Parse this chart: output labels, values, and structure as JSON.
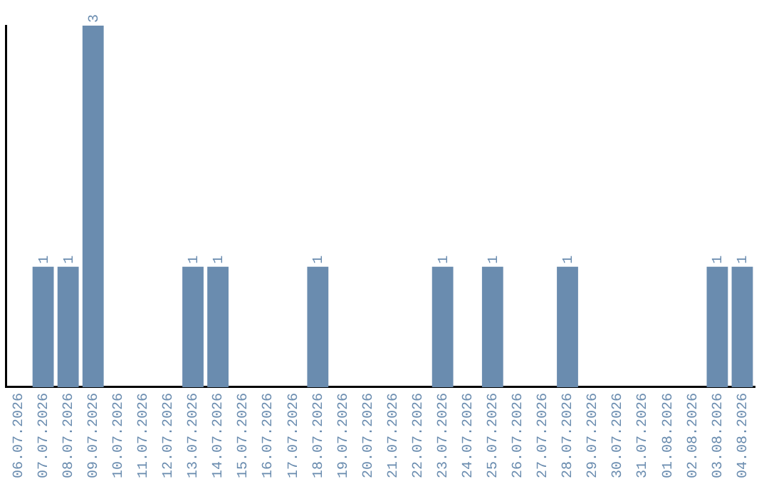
{
  "chart_data": {
    "type": "bar",
    "categories": [
      "06.07.2026",
      "07.07.2026",
      "08.07.2026",
      "09.07.2026",
      "10.07.2026",
      "11.07.2026",
      "12.07.2026",
      "13.07.2026",
      "14.07.2026",
      "15.07.2026",
      "16.07.2026",
      "17.07.2026",
      "18.07.2026",
      "19.07.2026",
      "20.07.2026",
      "21.07.2026",
      "22.07.2026",
      "23.07.2026",
      "24.07.2026",
      "25.07.2026",
      "26.07.2026",
      "27.07.2026",
      "28.07.2026",
      "29.07.2026",
      "30.07.2026",
      "31.07.2026",
      "01.08.2026",
      "02.08.2026",
      "03.08.2026",
      "04.08.2026"
    ],
    "values": [
      0,
      1,
      1,
      3,
      0,
      0,
      0,
      1,
      1,
      0,
      0,
      0,
      1,
      0,
      0,
      0,
      0,
      1,
      0,
      1,
      0,
      0,
      1,
      0,
      0,
      0,
      0,
      0,
      1,
      1
    ],
    "value_labels": [
      null,
      "1",
      "1",
      "3",
      null,
      null,
      null,
      "1",
      "1",
      null,
      null,
      null,
      "1",
      null,
      null,
      null,
      null,
      "1",
      null,
      "1",
      null,
      null,
      "1",
      null,
      null,
      null,
      null,
      null,
      "1",
      "1"
    ],
    "color": "#6a8caf",
    "ylim": [
      0,
      3
    ],
    "tick_labels": "x",
    "grid": false,
    "legend": false
  }
}
